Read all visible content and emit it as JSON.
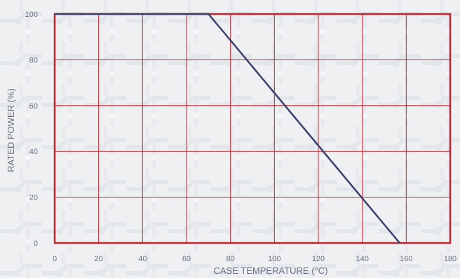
{
  "chart_data": {
    "type": "line",
    "title": "",
    "xlabel": "CASE TEMPERATURE (°C)",
    "ylabel": "RATED POWER (%)",
    "xlim": [
      0,
      180
    ],
    "ylim": [
      0,
      100
    ],
    "x_ticks": [
      0,
      20,
      40,
      60,
      80,
      100,
      120,
      140,
      160,
      180
    ],
    "y_ticks": [
      0,
      20,
      40,
      60,
      80,
      100
    ],
    "grid": true,
    "colors": {
      "grid": "#c3242e",
      "line": "#3a3f6b",
      "background": "#eef0f2"
    },
    "series": [
      {
        "x": [
          0,
          70,
          157
        ],
        "y": [
          100,
          100,
          0
        ]
      }
    ]
  }
}
